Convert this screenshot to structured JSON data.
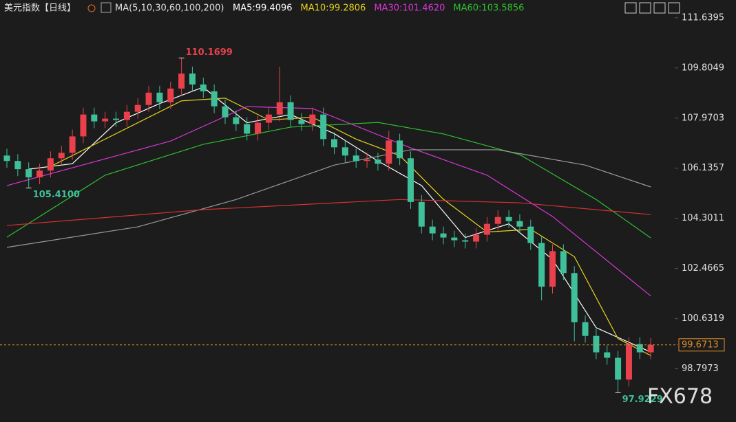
{
  "chart_data": {
    "type": "candlestick",
    "title": "美元指数【日线】",
    "indicator": "MA(5,10,30,60,100,200)",
    "watermark": "FX678",
    "up_color": "#e8414b",
    "down_color": "#3fbf9a",
    "open": [
      106.6,
      106.4,
      106.1,
      105.8,
      106.05,
      106.5,
      106.7,
      107.3,
      108.1,
      107.85,
      107.95,
      107.9,
      108.2,
      108.45,
      108.9,
      108.55,
      109.05,
      109.6,
      109.2,
      108.95,
      108.4,
      108.0,
      107.75,
      107.4,
      107.8,
      108.1,
      108.55,
      107.9,
      107.75,
      108.1,
      107.2,
      106.9,
      106.6,
      106.4,
      106.45,
      106.3,
      107.15,
      106.5,
      104.9,
      104.0,
      103.75,
      103.6,
      103.5,
      103.45,
      103.7,
      104.1,
      104.35,
      104.2,
      104.0,
      103.4,
      101.8,
      103.1,
      102.3,
      100.5,
      100.0,
      99.4,
      99.2,
      98.4,
      99.7,
      99.4
    ],
    "high": [
      106.85,
      106.65,
      106.35,
      106.3,
      106.75,
      106.95,
      107.55,
      108.35,
      108.35,
      108.2,
      108.2,
      108.45,
      108.7,
      109.15,
      109.15,
      109.3,
      110.1699,
      109.85,
      109.45,
      109.2,
      108.65,
      108.25,
      108.0,
      108.05,
      108.35,
      109.85,
      108.8,
      108.15,
      108.35,
      108.35,
      107.45,
      107.15,
      106.85,
      106.7,
      106.7,
      107.5,
      107.4,
      106.75,
      105.15,
      104.25,
      104.0,
      103.85,
      103.75,
      103.95,
      104.35,
      104.6,
      104.6,
      104.45,
      104.25,
      103.65,
      103.35,
      103.35,
      102.55,
      100.75,
      100.25,
      99.65,
      99.45,
      99.95,
      99.95,
      99.92
    ],
    "low": [
      106.15,
      105.85,
      105.41,
      105.55,
      105.8,
      106.25,
      106.45,
      107.05,
      107.6,
      107.6,
      107.65,
      107.65,
      107.95,
      108.2,
      108.3,
      108.3,
      108.8,
      108.95,
      108.7,
      108.15,
      107.75,
      107.5,
      107.15,
      107.15,
      107.55,
      107.85,
      107.65,
      107.5,
      107.5,
      106.95,
      106.65,
      106.35,
      106.15,
      106.15,
      106.05,
      106.05,
      106.25,
      104.65,
      103.75,
      103.5,
      103.35,
      103.25,
      103.2,
      103.2,
      103.45,
      103.85,
      103.95,
      103.75,
      103.15,
      101.3,
      101.55,
      102.05,
      99.8,
      99.75,
      99.15,
      98.95,
      97.9229,
      98.15,
      99.15,
      99.15
    ],
    "close": [
      106.4,
      106.1,
      105.8,
      106.05,
      106.5,
      106.7,
      107.3,
      108.1,
      107.85,
      107.95,
      107.9,
      108.2,
      108.45,
      108.9,
      108.55,
      109.05,
      109.6,
      109.2,
      108.95,
      108.4,
      108.0,
      107.75,
      107.4,
      107.8,
      108.1,
      108.55,
      107.9,
      107.75,
      108.1,
      107.2,
      106.9,
      106.6,
      106.4,
      106.45,
      106.3,
      107.15,
      106.5,
      104.9,
      104.0,
      103.75,
      103.6,
      103.5,
      103.45,
      103.7,
      104.1,
      104.35,
      104.2,
      104.0,
      103.4,
      101.8,
      103.1,
      102.3,
      100.5,
      100.0,
      99.4,
      99.2,
      98.4,
      99.7,
      99.4,
      99.6713
    ],
    "last_label": "99.6713",
    "annotations": [
      {
        "index": 16,
        "value": 110.1699,
        "label": "110.1699",
        "color": "#e8414b"
      },
      {
        "index": 2,
        "value": 105.41,
        "label": "105.4100",
        "color": "#3fbf9a"
      },
      {
        "index": 56,
        "value": 97.9229,
        "label": "97.9229",
        "color": "#3fbf9a"
      }
    ],
    "series": [
      {
        "name": "MA5:99.4096",
        "color": "#ffffff",
        "x": [
          2,
          6,
          10,
          14,
          18,
          22,
          26,
          30,
          34,
          38,
          42,
          46,
          50,
          54,
          59
        ],
        "values": [
          106.1,
          106.3,
          107.8,
          108.5,
          109.1,
          107.8,
          108.1,
          107.4,
          106.4,
          105.5,
          103.6,
          104.1,
          102.8,
          100.3,
          99.4096
        ]
      },
      {
        "name": "MA10:99.2806",
        "color": "#e6d21e",
        "x": [
          4,
          8,
          12,
          16,
          20,
          24,
          28,
          32,
          36,
          40,
          44,
          48,
          52,
          56,
          59
        ],
        "values": [
          106.2,
          107.0,
          107.8,
          108.6,
          108.7,
          107.9,
          108.0,
          107.2,
          106.6,
          105.0,
          103.8,
          103.9,
          102.9,
          99.9,
          99.2806
        ]
      },
      {
        "name": "MA30:101.4620",
        "color": "#d936d9",
        "x": [
          0,
          15,
          22,
          28,
          37,
          44,
          50,
          59
        ],
        "values": [
          105.5,
          107.13,
          108.39,
          108.32,
          106.88,
          105.88,
          104.37,
          101.462
        ]
      },
      {
        "name": "MA60:103.5856",
        "color": "#2fbf2f",
        "x": [
          0,
          9,
          18,
          26,
          34,
          40,
          47,
          54,
          59
        ],
        "values": [
          103.61,
          105.88,
          107.01,
          107.64,
          107.81,
          107.39,
          106.63,
          104.99,
          103.5856
        ]
      },
      {
        "color": "#9a9a9a",
        "x": [
          0,
          12,
          21,
          30,
          37,
          45,
          53,
          59
        ],
        "values": [
          103.24,
          103.99,
          104.99,
          106.25,
          106.81,
          106.81,
          106.25,
          105.45
        ]
      },
      {
        "color": "#d83030",
        "x": [
          0,
          18,
          36,
          47,
          59
        ],
        "values": [
          104.04,
          104.62,
          104.99,
          104.87,
          104.44
        ]
      }
    ],
    "ylim": [
      96.85,
      112.29
    ],
    "yticks": [
      111.6395,
      109.8049,
      107.9703,
      106.1357,
      104.3011,
      102.4665,
      100.6319,
      98.7973
    ]
  }
}
